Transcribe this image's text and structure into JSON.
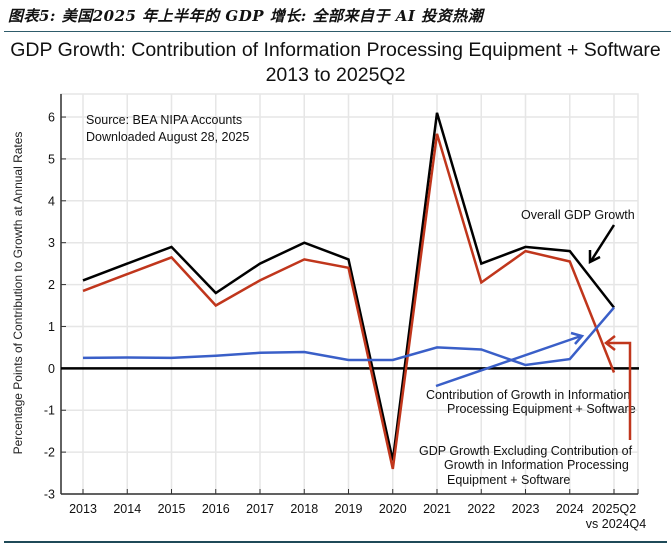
{
  "caption": "图表5: 美国2025 年上半年的 GDP 增长: 全部来自于 AI 投资热潮",
  "chart_data": {
    "type": "line",
    "title": "GDP Growth:  Contribution of Information Processing Equipment + Software",
    "subtitle": "2013 to 2025Q2",
    "xlabel": "",
    "ylabel": "Percentage Points of Contribution to Growth at Annual Rates",
    "categories": [
      "2013",
      "2014",
      "2015",
      "2016",
      "2017",
      "2018",
      "2019",
      "2020",
      "2021",
      "2022",
      "2023",
      "2024",
      "2025Q2"
    ],
    "category_sublabel": {
      "2025Q2": "vs 2024Q4"
    },
    "ylim": [
      -3,
      6.55
    ],
    "yticks": [
      -3,
      -2,
      -1,
      0,
      1,
      2,
      3,
      4,
      5,
      6
    ],
    "grid": true,
    "series": [
      {
        "name": "Overall GDP Growth",
        "color": "#000000",
        "values": [
          2.1,
          2.5,
          2.9,
          1.8,
          2.5,
          3.0,
          2.6,
          -2.2,
          6.1,
          2.5,
          2.9,
          2.8,
          1.45
        ]
      },
      {
        "name": "GDP Growth Excluding Contribution of Growth in Information Processing Equipment + Software",
        "color": "#c0361c",
        "values": [
          1.85,
          2.25,
          2.65,
          1.5,
          2.1,
          2.6,
          2.4,
          -2.4,
          5.6,
          2.05,
          2.8,
          2.55,
          -0.1
        ]
      },
      {
        "name": "Contribution of Growth in Information Processing Equipment + Software",
        "color": "#3a5fc8",
        "values": [
          0.25,
          0.26,
          0.25,
          0.3,
          0.37,
          0.39,
          0.2,
          0.2,
          0.5,
          0.45,
          0.08,
          0.22,
          1.45
        ]
      }
    ],
    "annotations": {
      "source_line1": "Source:  BEA NIPA Accounts",
      "source_line2": "Downloaded August 28, 2025",
      "overall_label": "Overall GDP Growth",
      "contrib_label_line1": "Contribution of Growth in Information",
      "contrib_label_line2": "Processing Equipment + Software",
      "excl_label_line1": "GDP Growth Excluding Contribution of",
      "excl_label_line2": "Growth in Information Processing",
      "excl_label_line3": "Equipment + Software"
    }
  }
}
